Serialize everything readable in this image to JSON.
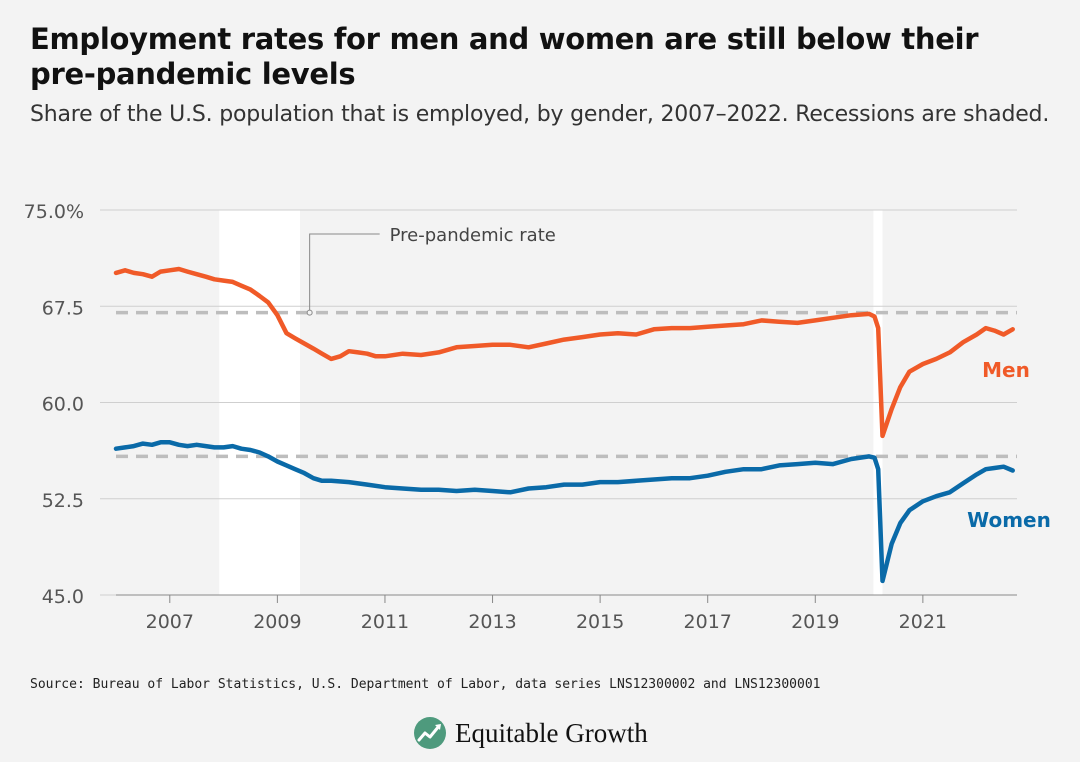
{
  "header": {
    "title": "Employment rates for men and women are still below their pre-pandemic levels",
    "subtitle": "Share of the U.S. population that is employed, by gender, 2007–2022. Recessions are shaded."
  },
  "footer": {
    "source": "Source: Bureau of Labor Statistics, U.S. Department of Labor, data series LNS12300002 and LNS12300001",
    "brand": "Equitable Growth"
  },
  "colors": {
    "men": "#f05a28",
    "women": "#0a6aa8",
    "recession": "#ffffff",
    "reference": "#bdbdbd",
    "grid": "#cfcfcf",
    "background": "#f3f3f3",
    "logo": "#4e9a7d"
  },
  "chart_data": {
    "type": "line",
    "title": "",
    "xlabel": "",
    "ylabel": "",
    "xlim": [
      2006.0,
      2022.75
    ],
    "ylim": [
      45,
      75
    ],
    "y_ticks": [
      {
        "value": 75,
        "label": "75.0%"
      },
      {
        "value": 67.5,
        "label": "67.5"
      },
      {
        "value": 60,
        "label": "60.0"
      },
      {
        "value": 52.5,
        "label": "52.5"
      },
      {
        "value": 45,
        "label": "45.0"
      }
    ],
    "x_ticks": [
      {
        "value": 2007,
        "label": "2007"
      },
      {
        "value": 2009,
        "label": "2009"
      },
      {
        "value": 2011,
        "label": "2011"
      },
      {
        "value": 2013,
        "label": "2013"
      },
      {
        "value": 2015,
        "label": "2015"
      },
      {
        "value": 2017,
        "label": "2017"
      },
      {
        "value": 2019,
        "label": "2019"
      },
      {
        "value": 2021,
        "label": "2021"
      }
    ],
    "grid": "horizontal",
    "recessions": [
      {
        "start": 2007.92,
        "end": 2009.42
      },
      {
        "start": 2020.08,
        "end": 2020.25
      }
    ],
    "reference_lines": [
      {
        "series": "Men",
        "value": 67
      },
      {
        "series": "Women",
        "value": 55.8
      }
    ],
    "annotations": [
      {
        "text": "Pre-pandemic rate",
        "x": 2009.6,
        "y": 67
      }
    ],
    "series": [
      {
        "name": "Men",
        "points": [
          [
            2006.0,
            70.1
          ],
          [
            2006.17,
            70.3
          ],
          [
            2006.33,
            70.1
          ],
          [
            2006.5,
            70.0
          ],
          [
            2006.67,
            69.8
          ],
          [
            2006.83,
            70.2
          ],
          [
            2007.0,
            70.3
          ],
          [
            2007.17,
            70.4
          ],
          [
            2007.33,
            70.2
          ],
          [
            2007.5,
            70.0
          ],
          [
            2007.67,
            69.8
          ],
          [
            2007.83,
            69.6
          ],
          [
            2008.0,
            69.5
          ],
          [
            2008.17,
            69.4
          ],
          [
            2008.33,
            69.1
          ],
          [
            2008.5,
            68.8
          ],
          [
            2008.67,
            68.3
          ],
          [
            2008.83,
            67.8
          ],
          [
            2009.0,
            66.8
          ],
          [
            2009.17,
            65.4
          ],
          [
            2009.33,
            65.0
          ],
          [
            2009.5,
            64.6
          ],
          [
            2009.67,
            64.2
          ],
          [
            2009.83,
            63.8
          ],
          [
            2010.0,
            63.4
          ],
          [
            2010.17,
            63.6
          ],
          [
            2010.33,
            64.0
          ],
          [
            2010.5,
            63.9
          ],
          [
            2010.67,
            63.8
          ],
          [
            2010.83,
            63.6
          ],
          [
            2011.0,
            63.6
          ],
          [
            2011.33,
            63.8
          ],
          [
            2011.67,
            63.7
          ],
          [
            2012.0,
            63.9
          ],
          [
            2012.33,
            64.3
          ],
          [
            2012.67,
            64.4
          ],
          [
            2013.0,
            64.5
          ],
          [
            2013.33,
            64.5
          ],
          [
            2013.67,
            64.3
          ],
          [
            2014.0,
            64.6
          ],
          [
            2014.33,
            64.9
          ],
          [
            2014.67,
            65.1
          ],
          [
            2015.0,
            65.3
          ],
          [
            2015.33,
            65.4
          ],
          [
            2015.67,
            65.3
          ],
          [
            2016.0,
            65.7
          ],
          [
            2016.33,
            65.8
          ],
          [
            2016.67,
            65.8
          ],
          [
            2017.0,
            65.9
          ],
          [
            2017.33,
            66.0
          ],
          [
            2017.67,
            66.1
          ],
          [
            2018.0,
            66.4
          ],
          [
            2018.33,
            66.3
          ],
          [
            2018.67,
            66.2
          ],
          [
            2019.0,
            66.4
          ],
          [
            2019.33,
            66.6
          ],
          [
            2019.67,
            66.8
          ],
          [
            2020.0,
            66.9
          ],
          [
            2020.1,
            66.7
          ],
          [
            2020.17,
            65.8
          ],
          [
            2020.25,
            57.4
          ],
          [
            2020.42,
            59.5
          ],
          [
            2020.58,
            61.2
          ],
          [
            2020.75,
            62.4
          ],
          [
            2021.0,
            63.0
          ],
          [
            2021.25,
            63.4
          ],
          [
            2021.5,
            63.9
          ],
          [
            2021.75,
            64.7
          ],
          [
            2022.0,
            65.3
          ],
          [
            2022.17,
            65.8
          ],
          [
            2022.33,
            65.6
          ],
          [
            2022.5,
            65.3
          ],
          [
            2022.67,
            65.7
          ]
        ]
      },
      {
        "name": "Women",
        "points": [
          [
            2006.0,
            56.4
          ],
          [
            2006.17,
            56.5
          ],
          [
            2006.33,
            56.6
          ],
          [
            2006.5,
            56.8
          ],
          [
            2006.67,
            56.7
          ],
          [
            2006.83,
            56.9
          ],
          [
            2007.0,
            56.9
          ],
          [
            2007.17,
            56.7
          ],
          [
            2007.33,
            56.6
          ],
          [
            2007.5,
            56.7
          ],
          [
            2007.67,
            56.6
          ],
          [
            2007.83,
            56.5
          ],
          [
            2008.0,
            56.5
          ],
          [
            2008.17,
            56.6
          ],
          [
            2008.33,
            56.4
          ],
          [
            2008.5,
            56.3
          ],
          [
            2008.67,
            56.1
          ],
          [
            2008.83,
            55.8
          ],
          [
            2009.0,
            55.4
          ],
          [
            2009.17,
            55.1
          ],
          [
            2009.33,
            54.8
          ],
          [
            2009.5,
            54.5
          ],
          [
            2009.67,
            54.1
          ],
          [
            2009.83,
            53.9
          ],
          [
            2010.0,
            53.9
          ],
          [
            2010.33,
            53.8
          ],
          [
            2010.67,
            53.6
          ],
          [
            2011.0,
            53.4
          ],
          [
            2011.33,
            53.3
          ],
          [
            2011.67,
            53.2
          ],
          [
            2012.0,
            53.2
          ],
          [
            2012.33,
            53.1
          ],
          [
            2012.67,
            53.2
          ],
          [
            2013.0,
            53.1
          ],
          [
            2013.33,
            53.0
          ],
          [
            2013.67,
            53.3
          ],
          [
            2014.0,
            53.4
          ],
          [
            2014.33,
            53.6
          ],
          [
            2014.67,
            53.6
          ],
          [
            2015.0,
            53.8
          ],
          [
            2015.33,
            53.8
          ],
          [
            2015.67,
            53.9
          ],
          [
            2016.0,
            54.0
          ],
          [
            2016.33,
            54.1
          ],
          [
            2016.67,
            54.1
          ],
          [
            2017.0,
            54.3
          ],
          [
            2017.33,
            54.6
          ],
          [
            2017.67,
            54.8
          ],
          [
            2018.0,
            54.8
          ],
          [
            2018.33,
            55.1
          ],
          [
            2018.67,
            55.2
          ],
          [
            2019.0,
            55.3
          ],
          [
            2019.33,
            55.2
          ],
          [
            2019.67,
            55.6
          ],
          [
            2020.0,
            55.8
          ],
          [
            2020.1,
            55.7
          ],
          [
            2020.17,
            54.8
          ],
          [
            2020.25,
            46.1
          ],
          [
            2020.42,
            49.0
          ],
          [
            2020.58,
            50.6
          ],
          [
            2020.75,
            51.6
          ],
          [
            2021.0,
            52.3
          ],
          [
            2021.25,
            52.7
          ],
          [
            2021.5,
            53.0
          ],
          [
            2021.75,
            53.7
          ],
          [
            2022.0,
            54.4
          ],
          [
            2022.17,
            54.8
          ],
          [
            2022.33,
            54.9
          ],
          [
            2022.5,
            55.0
          ],
          [
            2022.67,
            54.7
          ]
        ]
      }
    ]
  }
}
